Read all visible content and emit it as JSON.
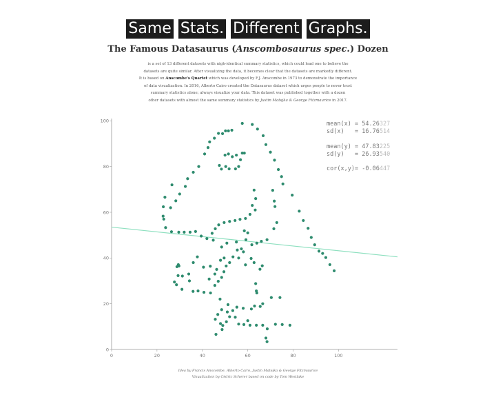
{
  "header": {
    "title_words": [
      "Same",
      "Stats.",
      "Different",
      "Graphs."
    ],
    "subtitle_main": "The Famous Datasaurus (",
    "subtitle_italic": "Anscombosaurus spec.",
    "subtitle_end": ") Dozen"
  },
  "intro": {
    "line1": "is a set of 13 different datasets with nigh-identical summary statistics, which could lead one to believe the",
    "line2": "datasets are quite similar. After visualizing the data, it becomes clear that the datasets are markedly different.",
    "line3_pre": "It is based on ",
    "line3_bold": "Anscombe's Quartet",
    "line3_post": " which was developed by F.J. Anscombe in 1973 to demonstrate the importance",
    "line4": "of data visualization. In 2016, Alberto Cairo created the Datasaurus dataset which urges people to never trust",
    "line5": "summary statistics alone; always visualize your data. This dataset was published together with a dozen",
    "line6_pre": "other datasets with almost the same summary statistics by ",
    "line6_italic": "Justin Matejka & George Fitzmaurice",
    "line6_post": " in 2017."
  },
  "stats": [
    {
      "label": "mean(x)",
      "eq": "= ",
      "fixed": "54.26",
      "var": "327"
    },
    {
      "label": "sd(x)",
      "eq": "= ",
      "fixed": "16.76",
      "var": "514"
    },
    {
      "label": "mean(y)",
      "eq": "= ",
      "fixed": "47.83",
      "var": "225"
    },
    {
      "label": "sd(y)",
      "eq": "= ",
      "fixed": "26.93",
      "var": "540"
    },
    {
      "label": "cor(x,y)",
      "eq": "= ",
      "fixed": "-0.06",
      "var": "447"
    }
  ],
  "footer": {
    "line1_pre": "Idea by Francis Anscombe, Alberto Cairo, ",
    "line1_italic": "Justin Matejka & George Fitzmaurice",
    "line2": "Visualization by Cédric Scherer based on code by Tom Westlake"
  },
  "colors": {
    "points": "#2e8b6e",
    "regression": "#8fe0c0",
    "axis": "#999999"
  },
  "chart_data": {
    "type": "scatter",
    "xlim": [
      0,
      126
    ],
    "ylim": [
      0,
      101
    ],
    "x_ticks": [
      0,
      20,
      40,
      60,
      80,
      100
    ],
    "y_ticks": [
      0,
      20,
      40,
      60,
      80,
      100
    ],
    "grid": false,
    "regression": {
      "x0": 0,
      "y0": 53.5,
      "x1": 126,
      "y1": 40.5
    },
    "points": [
      [
        57.6,
        98.9
      ],
      [
        62.0,
        98.4
      ],
      [
        53.0,
        95.9
      ],
      [
        50.2,
        95.6
      ],
      [
        51.5,
        95.6
      ],
      [
        47.1,
        94.5
      ],
      [
        48.9,
        94.4
      ],
      [
        45.3,
        92.4
      ],
      [
        43.2,
        90.8
      ],
      [
        64.3,
        96.4
      ],
      [
        66.8,
        93.5
      ],
      [
        68.0,
        89.6
      ],
      [
        70.0,
        86.3
      ],
      [
        71.8,
        82.8
      ],
      [
        73.5,
        78.7
      ],
      [
        74.9,
        75.6
      ],
      [
        75.5,
        72.4
      ],
      [
        42.5,
        88.3
      ],
      [
        41.0,
        85.5
      ],
      [
        51.5,
        85.5
      ],
      [
        50.0,
        85.0
      ],
      [
        55.0,
        85.0
      ],
      [
        58.5,
        85.9
      ],
      [
        57.6,
        85.9
      ],
      [
        53.2,
        84.3
      ],
      [
        56.8,
        83.0
      ],
      [
        50.3,
        80.0
      ],
      [
        47.5,
        80.5
      ],
      [
        51.8,
        79.0
      ],
      [
        48.4,
        78.9
      ],
      [
        56.0,
        80.0
      ],
      [
        54.6,
        79.0
      ],
      [
        38.4,
        80.0
      ],
      [
        36.0,
        77.5
      ],
      [
        33.5,
        74.7
      ],
      [
        32.5,
        71.3
      ],
      [
        26.6,
        72.0
      ],
      [
        30.0,
        68.0
      ],
      [
        28.3,
        65.0
      ],
      [
        26.0,
        62.0
      ],
      [
        23.5,
        66.6
      ],
      [
        22.8,
        62.4
      ],
      [
        22.7,
        58.3
      ],
      [
        23.0,
        57.0
      ],
      [
        23.8,
        53.3
      ],
      [
        26.4,
        51.5
      ],
      [
        29.6,
        51.3
      ],
      [
        32.0,
        51.3
      ],
      [
        34.6,
        51.3
      ],
      [
        37.0,
        51.6
      ],
      [
        39.5,
        49.6
      ],
      [
        42.0,
        48.5
      ],
      [
        44.3,
        50.8
      ],
      [
        45.7,
        52.8
      ],
      [
        47.2,
        54.5
      ],
      [
        49.6,
        55.5
      ],
      [
        52.0,
        56.0
      ],
      [
        54.4,
        56.4
      ],
      [
        56.6,
        56.9
      ],
      [
        59.0,
        57.3
      ],
      [
        61.0,
        59.1
      ],
      [
        62.0,
        63.0
      ],
      [
        63.5,
        66.0
      ],
      [
        62.8,
        69.7
      ],
      [
        63.3,
        61.0
      ],
      [
        60.0,
        51.0
      ],
      [
        59.2,
        48.0
      ],
      [
        58.5,
        51.9
      ],
      [
        57.2,
        44.0
      ],
      [
        55.4,
        43.5
      ],
      [
        58.1,
        42.7
      ],
      [
        56.0,
        40.0
      ],
      [
        53.5,
        40.5
      ],
      [
        52.0,
        38.0
      ],
      [
        49.6,
        40.0
      ],
      [
        48.0,
        39.0
      ],
      [
        50.5,
        36.5
      ],
      [
        49.5,
        34.0
      ],
      [
        48.5,
        31.5
      ],
      [
        47.0,
        29.8
      ],
      [
        45.5,
        28.0
      ],
      [
        48.5,
        44.8
      ],
      [
        50.8,
        46.5
      ],
      [
        55.0,
        47.0
      ],
      [
        61.8,
        45.8
      ],
      [
        64.0,
        46.5
      ],
      [
        66.0,
        47.3
      ],
      [
        68.5,
        48.0
      ],
      [
        71.5,
        52.8
      ],
      [
        72.8,
        55.5
      ],
      [
        72.0,
        62.5
      ],
      [
        71.7,
        64.9
      ],
      [
        71.0,
        69.6
      ],
      [
        79.6,
        67.5
      ],
      [
        82.7,
        60.5
      ],
      [
        84.5,
        56.4
      ],
      [
        86.6,
        53.0
      ],
      [
        88.0,
        49.0
      ],
      [
        89.5,
        45.8
      ],
      [
        91.4,
        43.0
      ],
      [
        93.0,
        42.0
      ],
      [
        94.4,
        40.2
      ],
      [
        96.2,
        37.1
      ],
      [
        98.1,
        34.4
      ],
      [
        43.6,
        24.7
      ],
      [
        40.7,
        25.0
      ],
      [
        38.1,
        25.6
      ],
      [
        35.9,
        25.4
      ],
      [
        34.3,
        30.0
      ],
      [
        31.2,
        32.1
      ],
      [
        29.3,
        32.3
      ],
      [
        29.4,
        37.1
      ],
      [
        29.7,
        36.5
      ],
      [
        28.8,
        36.2
      ],
      [
        27.7,
        29.5
      ],
      [
        28.6,
        28.3
      ],
      [
        31.0,
        26.3
      ],
      [
        34.0,
        33.0
      ],
      [
        36.0,
        38.0
      ],
      [
        37.8,
        40.5
      ],
      [
        40.5,
        36.0
      ],
      [
        43.5,
        36.4
      ],
      [
        45.5,
        33.0
      ],
      [
        43.0,
        30.8
      ],
      [
        46.3,
        35.0
      ],
      [
        44.8,
        47.8
      ],
      [
        45.7,
        13.2
      ],
      [
        48.5,
        17.4
      ],
      [
        46.8,
        15.3
      ],
      [
        48.0,
        11.3
      ],
      [
        48.7,
        8.7
      ],
      [
        51.3,
        19.6
      ],
      [
        51.0,
        16.4
      ],
      [
        52.0,
        14.3
      ],
      [
        49.0,
        10.5
      ],
      [
        50.6,
        12.1
      ],
      [
        53.4,
        17.0
      ],
      [
        54.5,
        14.1
      ],
      [
        56.0,
        11.1
      ],
      [
        55.2,
        18.5
      ],
      [
        58.3,
        10.9
      ],
      [
        60.0,
        12.6
      ],
      [
        58.0,
        18.0
      ],
      [
        61.6,
        17.7
      ],
      [
        63.0,
        19.0
      ],
      [
        65.5,
        18.8
      ],
      [
        66.6,
        20.0
      ],
      [
        70.4,
        22.7
      ],
      [
        74.2,
        22.7
      ],
      [
        72.2,
        11.0
      ],
      [
        75.2,
        10.9
      ],
      [
        78.6,
        10.6
      ],
      [
        61.0,
        10.6
      ],
      [
        63.8,
        10.6
      ],
      [
        66.6,
        10.6
      ],
      [
        68.6,
        9.0
      ],
      [
        68.0,
        5.0
      ],
      [
        68.5,
        3.4
      ],
      [
        64.0,
        24.7
      ],
      [
        63.5,
        28.8
      ],
      [
        46.0,
        6.6
      ],
      [
        47.8,
        22.0
      ],
      [
        59.0,
        37.0
      ],
      [
        61.5,
        39.8
      ],
      [
        62.8,
        38.0
      ],
      [
        66.4,
        36.6
      ],
      [
        65.4,
        35.1
      ],
      [
        63.8,
        25.6
      ]
    ]
  }
}
